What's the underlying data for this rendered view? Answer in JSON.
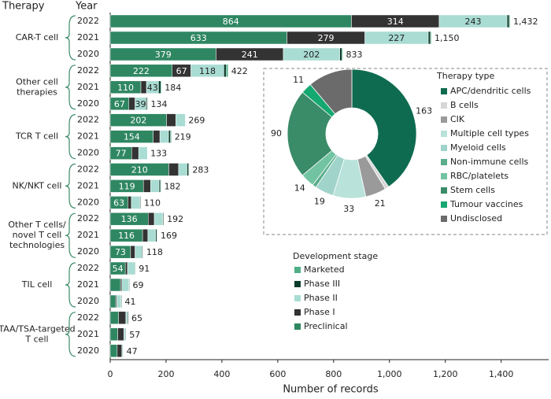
{
  "chart_data": [
    {
      "type": "stacked-bar",
      "headers": [
        "Therapy",
        "Year"
      ],
      "x_label": "Number of records",
      "xlim": [
        0,
        1570
      ],
      "xticks": [
        0,
        200,
        400,
        600,
        800,
        {
          "value": 1000,
          "label": "1,000"
        },
        {
          "value": 1200,
          "label": "1,200"
        },
        {
          "value": 1400,
          "label": "1,400"
        }
      ],
      "groups": [
        {
          "label": "CAR-T cell",
          "categories": [
            "2022",
            "2021",
            "2020"
          ]
        },
        {
          "label": "Other cell therapies",
          "categories": [
            "2022",
            "2021",
            "2020"
          ]
        },
        {
          "label": "TCR T cell",
          "categories": [
            "2022",
            "2021",
            "2020"
          ]
        },
        {
          "label": "NK/NKT cell",
          "categories": [
            "2022",
            "2021",
            "2020"
          ]
        },
        {
          "label": "Other T cells/ novel T cell technologies",
          "categories": [
            "2022",
            "2021",
            "2020"
          ]
        },
        {
          "label": "TIL cell",
          "categories": [
            "2022",
            "2021",
            "2020"
          ]
        },
        {
          "label": "TAA/TSA-targeted T cell",
          "categories": [
            "2022",
            "2021",
            "2020"
          ]
        }
      ],
      "legend_title": "Development stage",
      "series": [
        {
          "name": "Preclinical",
          "color": "#2f8762",
          "values": [
            864,
            633,
            379,
            222,
            110,
            67,
            202,
            154,
            77,
            210,
            119,
            63,
            136,
            116,
            73,
            54,
            37,
            20,
            30,
            27,
            25
          ]
        },
        {
          "name": "Phase I",
          "color": "#333333",
          "values": [
            314,
            279,
            241,
            67,
            20,
            22,
            33,
            24,
            25,
            35,
            26,
            13,
            22,
            19,
            16,
            8,
            5,
            4,
            26,
            22,
            17
          ]
        },
        {
          "name": "Phase II",
          "color": "#a9dcd3",
          "values": [
            243,
            227,
            202,
            118,
            43,
            39,
            34,
            31,
            31,
            30,
            30,
            30,
            30,
            28,
            25,
            27,
            25,
            15,
            6,
            6,
            4
          ]
        },
        {
          "name": "Phase III",
          "color": "#0c3d2c",
          "values": [
            8,
            8,
            8,
            8,
            8,
            4,
            0,
            7,
            0,
            6,
            5,
            3,
            3,
            4,
            3,
            2,
            2,
            2,
            3,
            2,
            1
          ]
        },
        {
          "name": "Marketed",
          "color": "#4fae86",
          "values": [
            3,
            3,
            3,
            7,
            3,
            2,
            0,
            3,
            0,
            2,
            2,
            1,
            1,
            2,
            1,
            0,
            0,
            0,
            0,
            0,
            0
          ]
        }
      ],
      "totals": [
        1432,
        1150,
        833,
        422,
        184,
        134,
        269,
        219,
        133,
        283,
        182,
        110,
        192,
        169,
        118,
        91,
        69,
        41,
        65,
        57,
        47
      ],
      "total_labels": [
        "1,432",
        "1,150",
        "833",
        "422",
        "184",
        "134",
        "269",
        "219",
        "133",
        "283",
        "182",
        "110",
        "192",
        "169",
        "118",
        "91",
        "69",
        "41",
        "65",
        "57",
        "47"
      ]
    },
    {
      "type": "donut",
      "legend_title": "Therapy type",
      "categories": [
        "APC/dendritic cells",
        "B cells",
        "CIK",
        "Multiple cell types",
        "Myeloid cells",
        "Non-immune cells",
        "RBC/platelets",
        "Stem cells",
        "Tumour vaccines",
        "Undisclosed"
      ],
      "values": [
        163,
        4,
        21,
        33,
        19,
        4,
        14,
        90,
        11,
        45
      ],
      "value_labels": [
        "163",
        null,
        "21",
        "33",
        "19",
        null,
        "14",
        "90",
        "11",
        null
      ],
      "colors": [
        "#0f6b4f",
        "#d6d6d6",
        "#9a9a9a",
        "#b9e2da",
        "#a0d4cb",
        "#5aae8c",
        "#72c3a1",
        "#3a8b67",
        "#16a871",
        "#6b6b6b"
      ]
    }
  ]
}
